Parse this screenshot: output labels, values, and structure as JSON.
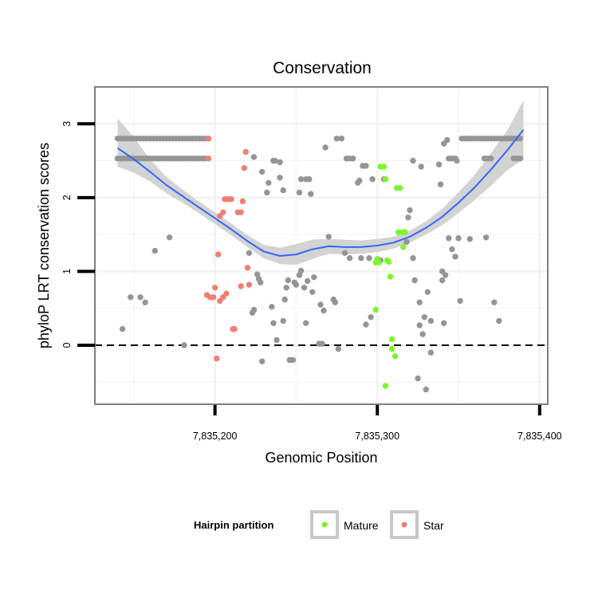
{
  "chart_data": {
    "type": "scatter",
    "title": "Conservation",
    "xlabel": "Genomic Position",
    "ylabel": "phyloP LRT conservation scores",
    "xlim": [
      7835126,
      7835405
    ],
    "ylim": [
      -0.8,
      3.5
    ],
    "x_ticks": [
      7835200,
      7835300,
      7835400
    ],
    "x_tick_labels": [
      "7,835,200",
      "7,835,300",
      "7,835,400"
    ],
    "y_ticks": [
      0,
      1,
      2,
      3
    ],
    "y_tick_labels": [
      "0",
      "1",
      "2",
      "3"
    ],
    "grid": true,
    "reference_line": {
      "y": 0,
      "style": "dashed"
    },
    "legend": {
      "title": "Hairpin partition",
      "position": "bottom",
      "entries": [
        {
          "label": "Mature",
          "color": "#7cf62a"
        },
        {
          "label": "Star",
          "color": "#f07f73"
        }
      ]
    },
    "colors": {
      "other": "#959595",
      "Mature": "#7cf62a",
      "Star": "#f07f73",
      "smooth": "#3366ff",
      "ribbon": "#d3d3d3"
    },
    "series": [
      {
        "points": [
          [
            7835140,
            2.8
          ],
          [
            7835142,
            2.8
          ],
          [
            7835144,
            2.8
          ],
          [
            7835146,
            2.8
          ],
          [
            7835148,
            2.8
          ],
          [
            7835150,
            2.8
          ],
          [
            7835152,
            2.8
          ],
          [
            7835154,
            2.8
          ],
          [
            7835156,
            2.8
          ],
          [
            7835158,
            2.8
          ],
          [
            7835160,
            2.8
          ],
          [
            7835162,
            2.8
          ],
          [
            7835164,
            2.8
          ],
          [
            7835166,
            2.8
          ],
          [
            7835168,
            2.8
          ],
          [
            7835170,
            2.8
          ],
          [
            7835172,
            2.8
          ],
          [
            7835174,
            2.8
          ],
          [
            7835176,
            2.8
          ],
          [
            7835178,
            2.8
          ],
          [
            7835180,
            2.8
          ],
          [
            7835182,
            2.8
          ],
          [
            7835184,
            2.8
          ],
          [
            7835186,
            2.8
          ],
          [
            7835188,
            2.8
          ],
          [
            7835190,
            2.8
          ],
          [
            7835192,
            2.8
          ],
          [
            7835194,
            2.8
          ],
          [
            7835196,
            2.8
          ],
          [
            7835140,
            2.53
          ],
          [
            7835142,
            2.53
          ],
          [
            7835144,
            2.53
          ],
          [
            7835146,
            2.53
          ],
          [
            7835148,
            2.53
          ],
          [
            7835150,
            2.53
          ],
          [
            7835152,
            2.53
          ],
          [
            7835154,
            2.53
          ],
          [
            7835156,
            2.53
          ],
          [
            7835158,
            2.53
          ],
          [
            7835160,
            2.53
          ],
          [
            7835162,
            2.53
          ],
          [
            7835164,
            2.53
          ],
          [
            7835166,
            2.53
          ],
          [
            7835168,
            2.53
          ],
          [
            7835170,
            2.53
          ],
          [
            7835172,
            2.53
          ],
          [
            7835174,
            2.53
          ],
          [
            7835176,
            2.53
          ],
          [
            7835178,
            2.53
          ],
          [
            7835180,
            2.53
          ],
          [
            7835182,
            2.53
          ],
          [
            7835184,
            2.53
          ],
          [
            7835186,
            2.53
          ],
          [
            7835188,
            2.53
          ],
          [
            7835190,
            2.53
          ],
          [
            7835192,
            2.53
          ],
          [
            7835194,
            2.53
          ],
          [
            7835352,
            2.8
          ],
          [
            7835354,
            2.8
          ],
          [
            7835356,
            2.8
          ],
          [
            7835358,
            2.8
          ],
          [
            7835360,
            2.8
          ],
          [
            7835362,
            2.8
          ],
          [
            7835364,
            2.8
          ],
          [
            7835366,
            2.8
          ],
          [
            7835368,
            2.8
          ],
          [
            7835370,
            2.8
          ],
          [
            7835372,
            2.8
          ],
          [
            7835374,
            2.8
          ],
          [
            7835376,
            2.8
          ],
          [
            7835378,
            2.8
          ],
          [
            7835380,
            2.8
          ],
          [
            7835382,
            2.8
          ],
          [
            7835384,
            2.8
          ],
          [
            7835386,
            2.8
          ],
          [
            7835388,
            2.8
          ],
          [
            7835366,
            2.53
          ],
          [
            7835368,
            2.53
          ],
          [
            7835370,
            2.53
          ],
          [
            7835384,
            2.53
          ],
          [
            7835386,
            2.53
          ],
          [
            7835388,
            2.53
          ],
          [
            7835344,
            2.53
          ],
          [
            7835346,
            2.53
          ],
          [
            7835348,
            2.53
          ],
          [
            7835338,
            2.45
          ],
          [
            7835349,
            2.5
          ],
          [
            7835343,
            2.78
          ],
          [
            7835341,
            2.73
          ],
          [
            7835143,
            0.22
          ],
          [
            7835148,
            0.65
          ],
          [
            7835154,
            0.65
          ],
          [
            7835157,
            0.58
          ],
          [
            7835163,
            1.28
          ],
          [
            7835172,
            1.46
          ],
          [
            7835181,
            0.0
          ],
          [
            7835224,
            2.55
          ],
          [
            7835221,
            1.25
          ],
          [
            7835223,
            0.44
          ],
          [
            7835224,
            0.48
          ],
          [
            7835226,
            0.96
          ],
          [
            7835227,
            0.9
          ],
          [
            7835228,
            0.85
          ],
          [
            7835229,
            2.35
          ],
          [
            7835229,
            -0.22
          ],
          [
            7835232,
            2.07
          ],
          [
            7835233,
            2.2
          ],
          [
            7835235,
            0.52
          ],
          [
            7835236,
            2.5
          ],
          [
            7835237,
            2.5
          ],
          [
            7835236,
            0.3
          ],
          [
            7835238,
            0.07
          ],
          [
            7835240,
            2.27
          ],
          [
            7835240,
            2.48
          ],
          [
            7835242,
            2.1
          ],
          [
            7835242,
            0.33
          ],
          [
            7835243,
            0.62
          ],
          [
            7835244,
            0.78
          ],
          [
            7835245,
            0.88
          ],
          [
            7835246,
            -0.2
          ],
          [
            7835248,
            -0.2
          ],
          [
            7835249,
            0.85
          ],
          [
            7835250,
            0.82
          ],
          [
            7835252,
            2.07
          ],
          [
            7835252,
            0.95
          ],
          [
            7835253,
            2.25
          ],
          [
            7835253,
            1.01
          ],
          [
            7835255,
            0.78
          ],
          [
            7835256,
            2.25
          ],
          [
            7835256,
            0.3
          ],
          [
            7835257,
            0.87
          ],
          [
            7835258,
            2.25
          ],
          [
            7835259,
            2.05
          ],
          [
            7835260,
            0.72
          ],
          [
            7835261,
            0.92
          ],
          [
            7835264,
            0.02
          ],
          [
            7835265,
            0.55
          ],
          [
            7835266,
            0.02
          ],
          [
            7835267,
            0.47
          ],
          [
            7835268,
            2.68
          ],
          [
            7835270,
            1.47
          ],
          [
            7835273,
            0.62
          ],
          [
            7835274,
            0.58
          ],
          [
            7835275,
            2.8
          ],
          [
            7835276,
            -0.05
          ],
          [
            7835278,
            2.8
          ],
          [
            7835280,
            1.25
          ],
          [
            7835281,
            2.53
          ],
          [
            7835283,
            2.53
          ],
          [
            7835283,
            1.18
          ],
          [
            7835285,
            2.53
          ],
          [
            7835288,
            2.2
          ],
          [
            7835289,
            2.23
          ],
          [
            7835290,
            1.18
          ],
          [
            7835291,
            2.43
          ],
          [
            7835293,
            2.43
          ],
          [
            7835293,
            0.28
          ],
          [
            7835295,
            1.18
          ],
          [
            7835296,
            0.38
          ],
          [
            7835297,
            2.25
          ],
          [
            7835302,
            1.15
          ],
          [
            7835304,
            2.25
          ],
          [
            7835317,
            1.53
          ],
          [
            7835318,
            1.4
          ],
          [
            7835319,
            1.73
          ],
          [
            7835320,
            1.83
          ],
          [
            7835322,
            1.18
          ],
          [
            7835322,
            2.5
          ],
          [
            7835323,
            0.88
          ],
          [
            7835325,
            -0.45
          ],
          [
            7835326,
            0.58
          ],
          [
            7835326,
            0.27
          ],
          [
            7835327,
            2.42
          ],
          [
            7835328,
            0.15
          ],
          [
            7835329,
            0.38
          ],
          [
            7835330,
            -0.6
          ],
          [
            7835331,
            0.72
          ],
          [
            7835333,
            -0.1
          ],
          [
            7835333,
            0.33
          ],
          [
            7835339,
            2.18
          ],
          [
            7835340,
            0.88
          ],
          [
            7835340,
            1.0
          ],
          [
            7835341,
            0.3
          ],
          [
            7835342,
            0.95
          ],
          [
            7835344,
            1.45
          ],
          [
            7835346,
            1.3
          ],
          [
            7835348,
            1.2
          ],
          [
            7835350,
            1.45
          ],
          [
            7835351,
            0.6
          ],
          [
            7835357,
            1.44
          ],
          [
            7835367,
            1.46
          ],
          [
            7835372,
            0.58
          ],
          [
            7835375,
            0.33
          ]
        ]
      },
      {
        "name": "Mature",
        "points": [
          [
            7835299,
            1.12
          ],
          [
            7835300,
            1.17
          ],
          [
            7835301,
            1.12
          ],
          [
            7835302,
            2.42
          ],
          [
            7835304,
            2.42
          ],
          [
            7835305,
            2.25
          ],
          [
            7835305,
            -0.55
          ],
          [
            7835306,
            1.15
          ],
          [
            7835307,
            1.13
          ],
          [
            7835308,
            0.93
          ],
          [
            7835309,
            0.08
          ],
          [
            7835309,
            -0.05
          ],
          [
            7835311,
            -0.15
          ],
          [
            7835312,
            2.13
          ],
          [
            7835313,
            1.53
          ],
          [
            7835314,
            2.13
          ],
          [
            7835315,
            1.53
          ],
          [
            7835316,
            1.33
          ],
          [
            7835317,
            1.53
          ],
          [
            7835299,
            0.48
          ]
        ]
      },
      {
        "name": "Star",
        "points": [
          [
            7835196,
            2.8
          ],
          [
            7835196,
            2.53
          ],
          [
            7835195,
            0.68
          ],
          [
            7835197,
            0.65
          ],
          [
            7835199,
            0.65
          ],
          [
            7835200,
            0.78
          ],
          [
            7835201,
            -0.18
          ],
          [
            7835202,
            1.23
          ],
          [
            7835203,
            0.6
          ],
          [
            7835203,
            1.75
          ],
          [
            7835205,
            1.8
          ],
          [
            7835205,
            0.65
          ],
          [
            7835206,
            1.98
          ],
          [
            7835207,
            0.7
          ],
          [
            7835208,
            1.98
          ],
          [
            7835210,
            1.98
          ],
          [
            7835211,
            0.22
          ],
          [
            7835212,
            0.22
          ],
          [
            7835214,
            1.8
          ],
          [
            7835216,
            1.8
          ],
          [
            7835216,
            0.8
          ],
          [
            7835217,
            1.95
          ],
          [
            7835218,
            2.4
          ],
          [
            7835219,
            2.62
          ],
          [
            7835220,
            1.05
          ],
          [
            7835221,
            0.82
          ]
        ]
      }
    ],
    "smooth": {
      "x": [
        7835140,
        7835150,
        7835160,
        7835170,
        7835180,
        7835190,
        7835200,
        7835210,
        7835220,
        7835230,
        7835240,
        7835250,
        7835260,
        7835270,
        7835280,
        7835290,
        7835300,
        7835310,
        7835320,
        7835330,
        7835340,
        7835350,
        7835360,
        7835370,
        7835380,
        7835390
      ],
      "y": [
        2.67,
        2.52,
        2.35,
        2.17,
        2.02,
        1.87,
        1.72,
        1.57,
        1.41,
        1.27,
        1.21,
        1.23,
        1.3,
        1.34,
        1.33,
        1.33,
        1.35,
        1.39,
        1.47,
        1.59,
        1.74,
        1.93,
        2.14,
        2.38,
        2.64,
        2.92
      ],
      "lower": [
        2.42,
        2.34,
        2.22,
        2.06,
        1.93,
        1.79,
        1.64,
        1.49,
        1.33,
        1.18,
        1.1,
        1.09,
        1.17,
        1.24,
        1.23,
        1.24,
        1.26,
        1.31,
        1.39,
        1.5,
        1.63,
        1.79,
        1.97,
        2.16,
        2.37,
        2.52
      ],
      "upper": [
        3.07,
        2.82,
        2.52,
        2.28,
        2.11,
        1.95,
        1.8,
        1.65,
        1.49,
        1.36,
        1.32,
        1.37,
        1.43,
        1.44,
        1.43,
        1.42,
        1.44,
        1.47,
        1.55,
        1.68,
        1.85,
        2.07,
        2.31,
        2.6,
        2.91,
        3.32
      ]
    }
  }
}
